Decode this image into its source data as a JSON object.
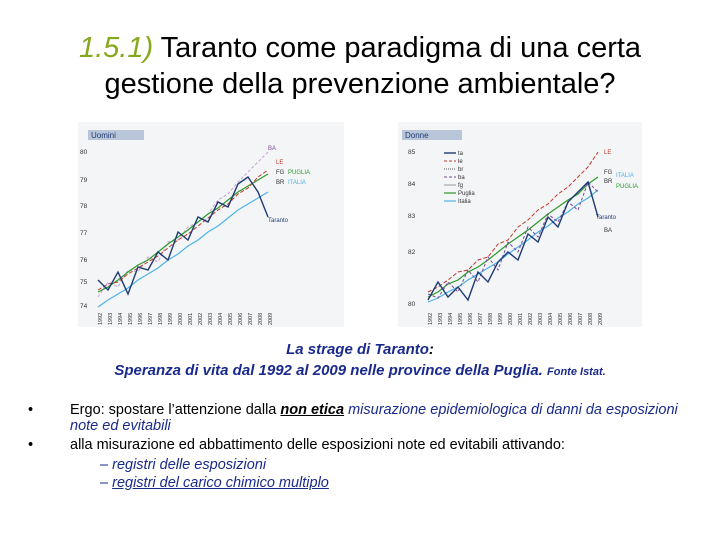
{
  "title": {
    "number": "1.5.1)",
    "text_line1": " Taranto come paradigma di una certa",
    "text_line2": "gestione della prevenzione ambientale?"
  },
  "chart_left": {
    "header": "Uomini",
    "y_ticks": [
      "80",
      "79",
      "78",
      "77",
      "76",
      "75",
      "74"
    ],
    "x_ticks": [
      "1992",
      "1993",
      "1994",
      "1995",
      "1996",
      "1997",
      "1998",
      "1999",
      "2000",
      "2001",
      "2002",
      "2003",
      "2004",
      "2005",
      "2006",
      "2007",
      "2008",
      "2009"
    ],
    "labels": {
      "ba": "BA",
      "le": "LE",
      "fg": "FG",
      "puglia": "PUGLIA",
      "br": "BR",
      "italia": "ITALIA",
      "taranto": "Taranto"
    }
  },
  "chart_right": {
    "header": "Donne",
    "y_ticks": [
      "85",
      "84",
      "83",
      "82",
      "80"
    ],
    "x_ticks": [
      "1992",
      "1993",
      "1994",
      "1995",
      "1996",
      "1997",
      "1998",
      "1999",
      "2000",
      "2001",
      "2002",
      "2003",
      "2004",
      "2005",
      "2006",
      "2007",
      "2008",
      "2009"
    ],
    "legend": [
      "ta",
      "le",
      "br",
      "ba",
      "fg",
      "Puglia",
      "Italia"
    ],
    "labels": {
      "le": "LE",
      "fg": "FG",
      "br": "BR",
      "italia": "ITALIA",
      "puglia": "PUGLIA",
      "taranto": "Taranto",
      "ba": "BA"
    }
  },
  "caption": {
    "line1": "La strage di Taranto",
    "colon": ":",
    "line2": "Speranza di vita dal 1992 al 2009 nelle province della Puglia.",
    "source": "Fonte Istat."
  },
  "bullets": [
    {
      "dot": "•",
      "pre": "Ergo: spostare l’attenzione dalla ",
      "underlined": "non etica",
      "post": " misurazione epidemiologica di danni da esposizioni note ed evitabili"
    },
    {
      "dot": "•",
      "text": "alla misurazione ed abbattimento delle  esposizioni note ed evitabili attivando:"
    }
  ],
  "sub_items": [
    {
      "dash": "–",
      "text": "registri delle esposizioni"
    },
    {
      "dash": "–",
      "text": "registri del carico chimico multiplo"
    }
  ],
  "colors": {
    "accent": "#86a81c",
    "caption": "#1a2a8c"
  }
}
